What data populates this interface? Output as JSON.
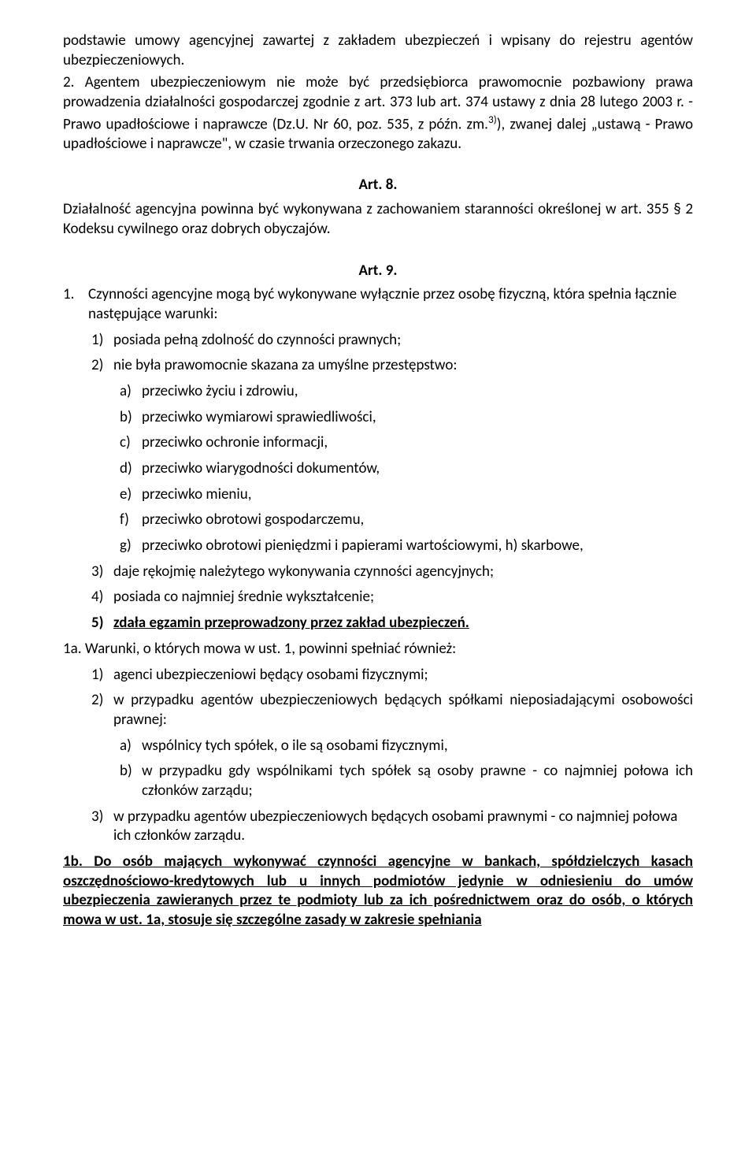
{
  "intro": {
    "p1": "podstawie umowy agencyjnej zawartej z zakładem ubezpieczeń i wpisany do rejestru agentów ubezpieczeniowych.",
    "p2_prefix": "2.",
    "p2": "Agentem ubezpieczeniowym nie może być przedsiębiorca prawomocnie pozbawiony prawa prowadzenia działalności gospodarczej zgodnie z art. 373 lub art. 374 ustawy z dnia 28 lutego 2003 r. - Prawo upadłościowe i naprawcze (Dz.U. Nr 60, poz. 535, z późn. zm.",
    "sup": "3)",
    "p2_tail": "), zwanej dalej „ustawą - Prawo upadłościowe i naprawcze\", w czasie trwania orzeczonego zakazu."
  },
  "art8": {
    "heading": "Art. 8.",
    "body": "Działalność agencyjna powinna być wykonywana z zachowaniem staranności określonej w art. 355 § 2 Kodeksu cywilnego oraz dobrych obyczajów."
  },
  "art9": {
    "heading": "Art. 9.",
    "n1_lead_num": "1.",
    "n1_lead": "Czynności agencyjne mogą być wykonywane wyłącznie przez osobę fizyczną, która spełnia łącznie następujące warunki:",
    "n1_1_num": "1)",
    "n1_1": "posiada pełną zdolność do czynności prawnych;",
    "n1_2_num": "2)",
    "n1_2": "nie była prawomocnie skazana za umyślne przestępstwo:",
    "a_num": "a)",
    "a": "przeciwko życiu i zdrowiu,",
    "b_num": "b)",
    "b": "przeciwko wymiarowi sprawiedliwości,",
    "c_num": "c)",
    "c": "przeciwko ochronie informacji,",
    "d_num": "d)",
    "d": "przeciwko wiarygodności dokumentów,",
    "e_num": "e)",
    "e": "przeciwko mieniu,",
    "f_num": "f)",
    "f": "przeciwko obrotowi gospodarczemu,",
    "g_num": "g)",
    "g": "przeciwko obrotowi pieniędzmi i papierami wartościowymi, h) skarbowe,",
    "n1_3_num": "3)",
    "n1_3": "daje rękojmię należytego wykonywania czynności agencyjnych;",
    "n1_4_num": "4)",
    "n1_4": "posiada co najmniej średnie wykształcenie;",
    "n1_5_num": "5)",
    "n1_5": "zdała egzamin przeprowadzony przez zakład ubezpieczeń.",
    "n1a_lead": "1a. Warunki, o których mowa w ust. 1, powinni spełniać również:",
    "n1a_1_num": "1)",
    "n1a_1": "agenci ubezpieczeniowi będący osobami fizycznymi;",
    "n1a_2_num": "2)",
    "n1a_2": "w przypadku agentów ubezpieczeniowych będących spółkami nieposiadającymi osobowości prawnej:",
    "n1a_a_num": "a)",
    "n1a_a": "wspólnicy tych spółek, o ile są osobami fizycznymi,",
    "n1a_b_num": "b)",
    "n1a_b": "w przypadku gdy wspólnikami tych spółek są osoby prawne - co najmniej połowa ich członków zarządu;",
    "n1a_3_num": "3)",
    "n1a_3": "w przypadku agentów ubezpieczeniowych będących osobami prawnymi - co najmniej połowa ich członków zarządu.",
    "n1b": "1b. Do osób mających wykonywać czynności agencyjne w bankach, spółdzielczych kasach oszczędnościowo-kredytowych lub u innych podmiotów jedynie w odniesieniu do umów ubezpieczenia zawieranych przez te podmioty lub za ich pośrednictwem oraz do osób, o których mowa w ust. 1a, stosuje się szczególne zasady w zakresie spełniania"
  }
}
